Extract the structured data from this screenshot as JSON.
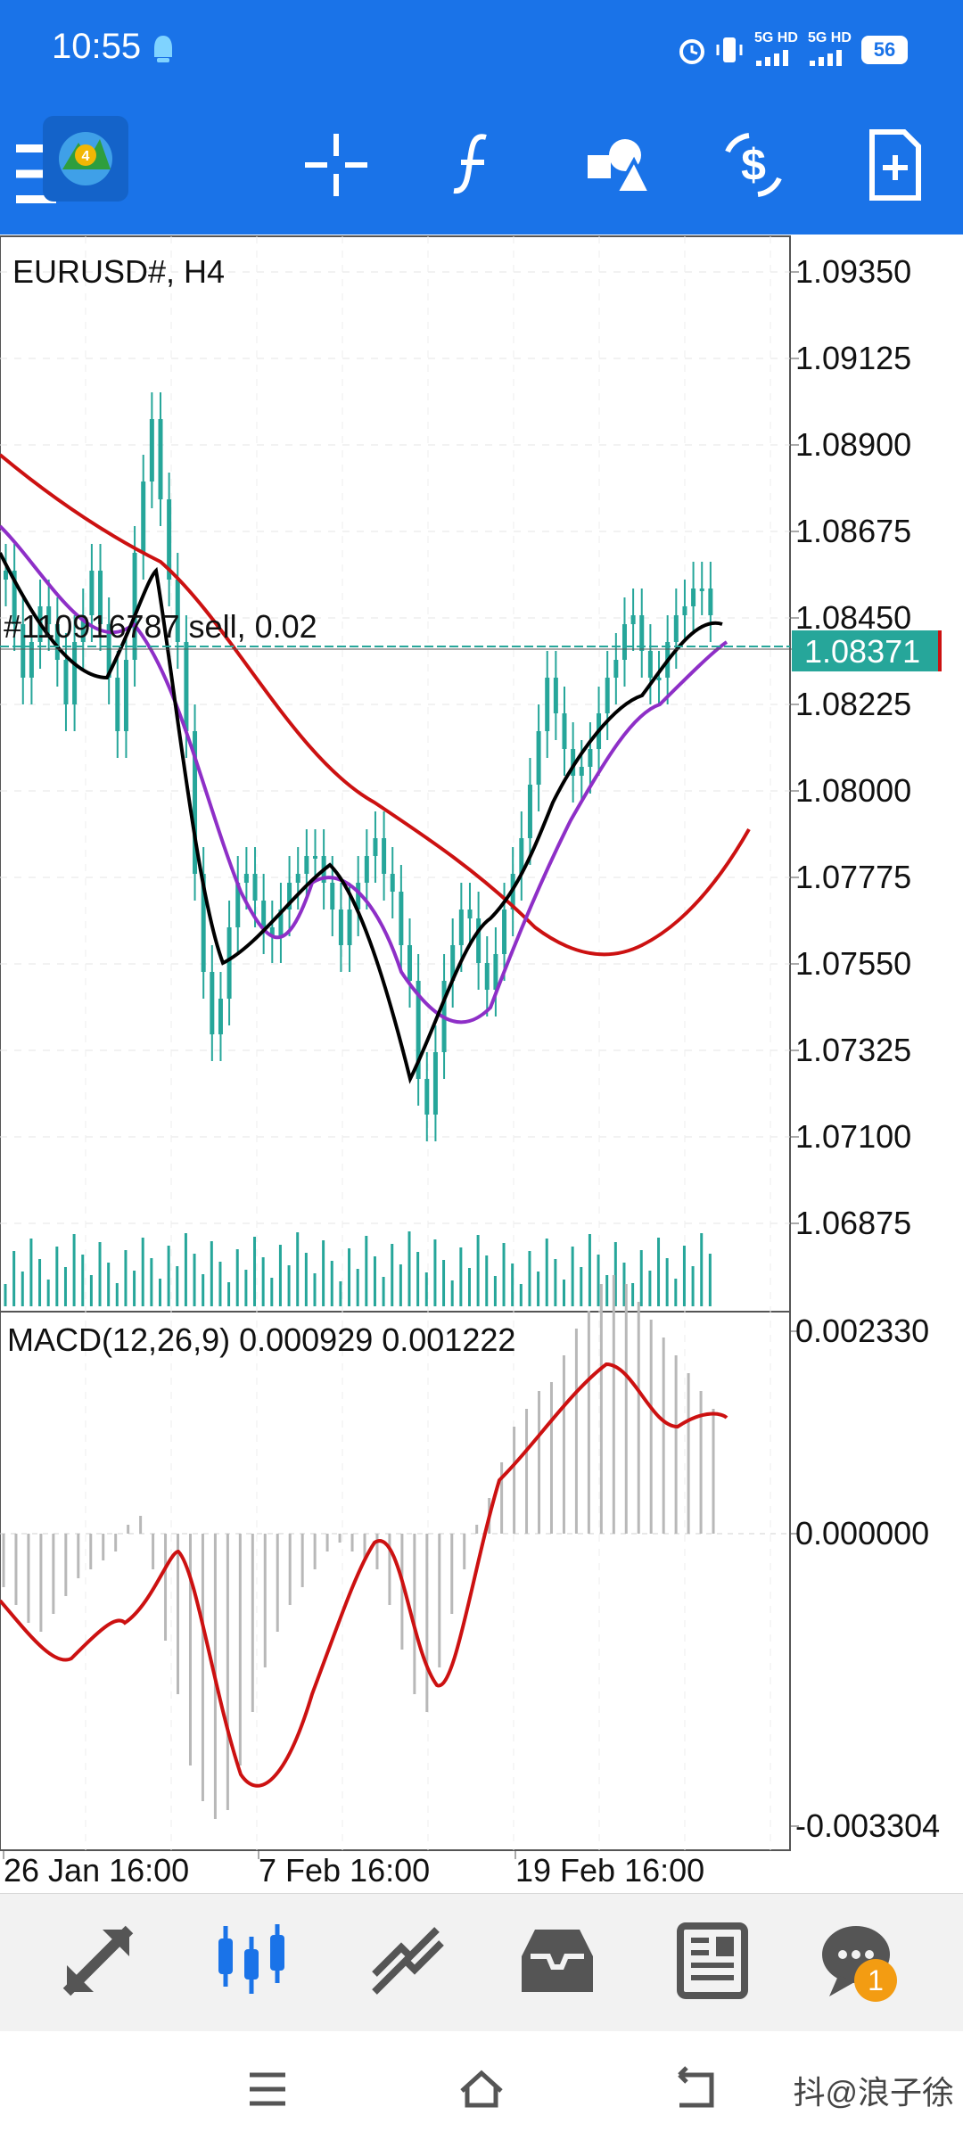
{
  "status_bar": {
    "time": "10:55",
    "network_1": "5G HD",
    "network_2": "5G HD",
    "battery": "56"
  },
  "toolbar": {
    "icons": [
      "menu-icon",
      "metatrader-logo-icon",
      "crosshair-icon",
      "indicators-icon",
      "objects-icon",
      "trade-icon",
      "new-order-icon"
    ]
  },
  "chart": {
    "symbol_label": "EURUSD#, H4",
    "order_line_label": "#110916787 sell, 0.02",
    "current_price": "1.08371",
    "price_ticks": [
      "1.09350",
      "1.09125",
      "1.08900",
      "1.08675",
      "1.08450",
      "1.08225",
      "1.08000",
      "1.07775",
      "1.07550",
      "1.07325",
      "1.07100",
      "1.06875"
    ],
    "macd_label": "MACD(12,26,9) 0.000929 0.001222",
    "macd_ticks": [
      "0.002330",
      "0.000000",
      "-0.003304"
    ],
    "time_ticks": [
      "26 Jan 16:00",
      "7 Feb 16:00",
      "19 Feb 16:00"
    ],
    "colors": {
      "up": "#26a69a",
      "down": "#26a69a",
      "ma_fast": "#000000",
      "ma_mid": "#8e2fc7",
      "ma_slow": "#cc1111",
      "macd_signal": "#cc1111",
      "macd_hist": "#b8b8b8",
      "price_label_bg": "#26a69a"
    }
  },
  "bottom_nav": {
    "items": [
      {
        "icon": "quotes-icon",
        "active": false
      },
      {
        "icon": "chart-icon",
        "active": true
      },
      {
        "icon": "trade-icon",
        "active": false
      },
      {
        "icon": "history-icon",
        "active": false
      },
      {
        "icon": "news-icon",
        "active": false
      },
      {
        "icon": "messages-icon",
        "active": false,
        "badge": "1"
      }
    ]
  },
  "watermark": "抖@浪子徐"
}
